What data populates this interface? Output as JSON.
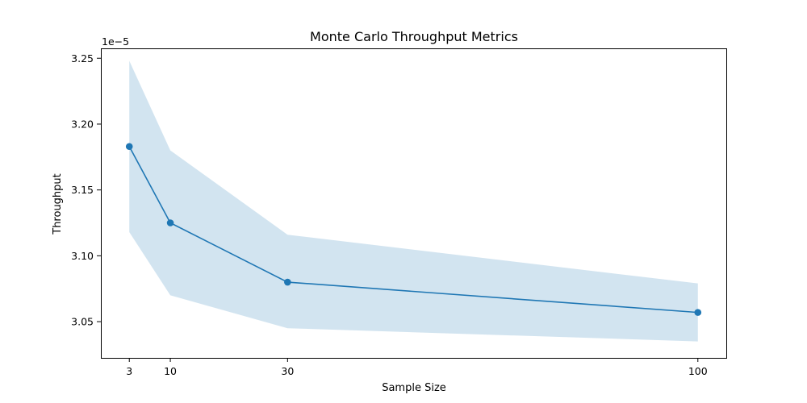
{
  "chart_data": {
    "type": "line",
    "title": "Monte Carlo Throughput Metrics",
    "xlabel": "Sample Size",
    "ylabel": "Throughput",
    "y_offset_label": "1e−5",
    "x": [
      3,
      10,
      30,
      100
    ],
    "xticks": [
      3,
      10,
      30,
      100
    ],
    "xtick_labels": [
      "3",
      "10",
      "30",
      "100"
    ],
    "yticks": [
      3.05,
      3.1,
      3.15,
      3.2,
      3.25
    ],
    "ytick_labels": [
      "3.05",
      "3.10",
      "3.15",
      "3.20",
      "3.25"
    ],
    "xlim": [
      -1.85,
      104.85
    ],
    "ylim": [
      3.0225,
      3.2575
    ],
    "series": [
      {
        "values": [
          3.183,
          3.125,
          3.08,
          3.057
        ],
        "band_upper": [
          3.248,
          3.18,
          3.116,
          3.079
        ],
        "band_lower": [
          3.118,
          3.07,
          3.045,
          3.035
        ],
        "color": "#1f77b4",
        "band_color": "#1f77b4"
      }
    ],
    "grid": false,
    "legend": "none"
  }
}
